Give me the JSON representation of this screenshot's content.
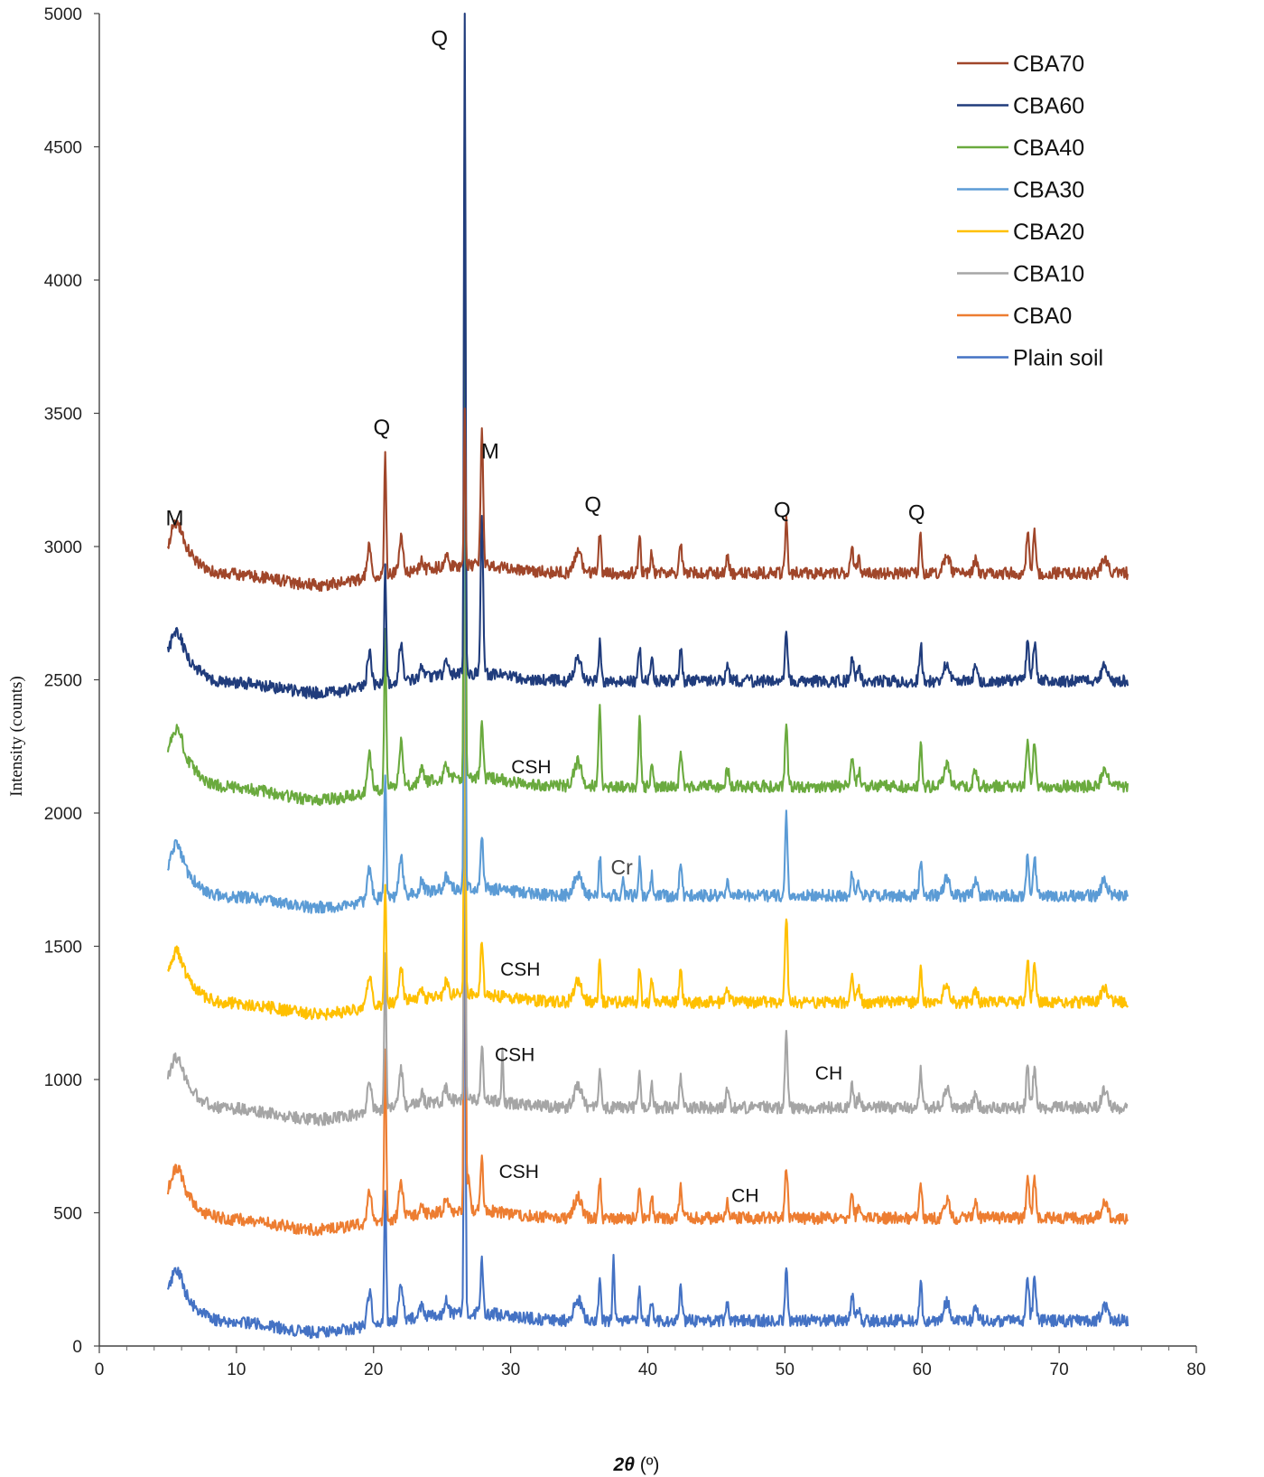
{
  "chart_data": {
    "type": "line",
    "title": "",
    "xlabel_symbol": "2θ",
    "xlabel_unit": " (º)",
    "ylabel": "Intensity (counts)",
    "xlim": [
      0,
      80
    ],
    "ylim": [
      0,
      5000
    ],
    "x_ticks": [
      0,
      10,
      20,
      30,
      40,
      50,
      60,
      70,
      80
    ],
    "y_ticks": [
      0,
      500,
      1000,
      1500,
      2000,
      2500,
      3000,
      3500,
      4000,
      4500,
      5000
    ],
    "legend_position": "top-right",
    "x_start": 5,
    "x_end": 75,
    "peaks": [
      {
        "x": 5.6,
        "h": 0.5,
        "w": 0.6
      },
      {
        "x": 19.7,
        "h": 0.6,
        "w": 0.22
      },
      {
        "x": 20.85,
        "h": 1.5,
        "w": 0.13
      },
      {
        "x": 22.0,
        "h": 0.7,
        "w": 0.2
      },
      {
        "x": 23.5,
        "h": 0.2,
        "w": 0.2
      },
      {
        "x": 25.3,
        "h": 0.25,
        "w": 0.2
      },
      {
        "x": 27.9,
        "h": 1.0,
        "w": 0.13
      },
      {
        "x": 34.9,
        "h": 0.4,
        "w": 0.4
      },
      {
        "x": 36.5,
        "h": 0.75,
        "w": 0.12
      },
      {
        "x": 39.4,
        "h": 0.65,
        "w": 0.12
      },
      {
        "x": 40.3,
        "h": 0.4,
        "w": 0.12
      },
      {
        "x": 42.4,
        "h": 0.6,
        "w": 0.13
      },
      {
        "x": 45.8,
        "h": 0.3,
        "w": 0.15
      },
      {
        "x": 50.1,
        "h": 1.0,
        "w": 0.13
      },
      {
        "x": 54.9,
        "h": 0.45,
        "w": 0.15
      },
      {
        "x": 55.4,
        "h": 0.25,
        "w": 0.15
      },
      {
        "x": 59.9,
        "h": 0.7,
        "w": 0.13
      },
      {
        "x": 61.8,
        "h": 0.35,
        "w": 0.3
      },
      {
        "x": 63.9,
        "h": 0.25,
        "w": 0.2
      },
      {
        "x": 67.7,
        "h": 0.75,
        "w": 0.15
      },
      {
        "x": 68.2,
        "h": 0.75,
        "w": 0.15
      },
      {
        "x": 73.3,
        "h": 0.3,
        "w": 0.3
      }
    ],
    "series": [
      {
        "name": "CBA70",
        "color": "#a0462a",
        "base": 2900,
        "q_peak": 3500,
        "q21_peak": 3340,
        "scale": 200,
        "extra": [
          {
            "x": 27.9,
            "h": 1.5,
            "w": 0.13
          }
        ]
      },
      {
        "name": "CBA60",
        "color": "#203c7c",
        "base": 2495,
        "q_peak": 5000,
        "q21_peak": 2930,
        "scale": 200,
        "extra": [
          {
            "x": 27.9,
            "h": 1.85,
            "w": 0.13
          }
        ]
      },
      {
        "name": "CBA40",
        "color": "#6aaa3e",
        "base": 2100,
        "q_peak": 4750,
        "q21_peak": 2700,
        "scale": 230,
        "extra": [
          {
            "x": 36.5,
            "h": 0.6,
            "w": 0.12
          },
          {
            "x": 39.4,
            "h": 0.5,
            "w": 0.12
          }
        ]
      },
      {
        "name": "CBA30",
        "color": "#5b9bd5",
        "base": 1690,
        "q_peak": 3960,
        "q21_peak": 2160,
        "scale": 200,
        "extra": [
          {
            "x": 50.1,
            "h": 0.5,
            "w": 0.13
          },
          {
            "x": 38.2,
            "h": 0.3,
            "w": 0.1
          }
        ]
      },
      {
        "name": "CBA20",
        "color": "#ffc000",
        "base": 1290,
        "q_peak": 3200,
        "q21_peak": 1760,
        "scale": 200,
        "extra": [
          {
            "x": 50.1,
            "h": 0.6,
            "w": 0.13
          }
        ]
      },
      {
        "name": "CBA10",
        "color": "#a5a5a5",
        "base": 895,
        "q_peak": 2600,
        "q21_peak": 1470,
        "scale": 200,
        "extra": [
          {
            "x": 29.4,
            "h": 0.9,
            "w": 0.1
          },
          {
            "x": 50.1,
            "h": 0.4,
            "w": 0.13
          }
        ]
      },
      {
        "name": "CBA0",
        "color": "#ed7d31",
        "base": 480,
        "q_peak": 3500,
        "q21_peak": 1120,
        "scale": 200,
        "extra": [
          {
            "x": 26.9,
            "h": 0.6,
            "w": 0.15
          }
        ]
      },
      {
        "name": "Plain soil",
        "color": "#4472c4",
        "base": 95,
        "q_peak": 2050,
        "q21_peak": 600,
        "scale": 200,
        "extra": [
          {
            "x": 37.5,
            "h": 1.25,
            "w": 0.1
          }
        ]
      }
    ],
    "annotations": [
      {
        "text": "Q",
        "x": 24.8,
        "y": 4880,
        "style": "annot"
      },
      {
        "text": "Q",
        "x": 20.6,
        "y": 3420,
        "style": "annot"
      },
      {
        "text": "M",
        "x": 28.5,
        "y": 3330,
        "style": "annot"
      },
      {
        "text": "M",
        "x": 5.5,
        "y": 3080,
        "style": "annot"
      },
      {
        "text": "Q",
        "x": 36.0,
        "y": 3130,
        "style": "annot"
      },
      {
        "text": "Q",
        "x": 49.8,
        "y": 3110,
        "style": "annot"
      },
      {
        "text": "Q",
        "x": 59.6,
        "y": 3100,
        "style": "annot"
      },
      {
        "text": "CSH",
        "x": 31.5,
        "y": 2150,
        "style": "annot-small"
      },
      {
        "text": "Cr",
        "x": 38.1,
        "y": 1770,
        "style": "annot-cr"
      },
      {
        "text": "CSH",
        "x": 30.7,
        "y": 1390,
        "style": "annot-small"
      },
      {
        "text": "CSH",
        "x": 30.3,
        "y": 1070,
        "style": "annot-small"
      },
      {
        "text": "CH",
        "x": 53.2,
        "y": 1000,
        "style": "annot-small"
      },
      {
        "text": "CSH",
        "x": 30.6,
        "y": 630,
        "style": "annot-small"
      },
      {
        "text": "CH",
        "x": 47.1,
        "y": 540,
        "style": "annot-small"
      }
    ]
  }
}
